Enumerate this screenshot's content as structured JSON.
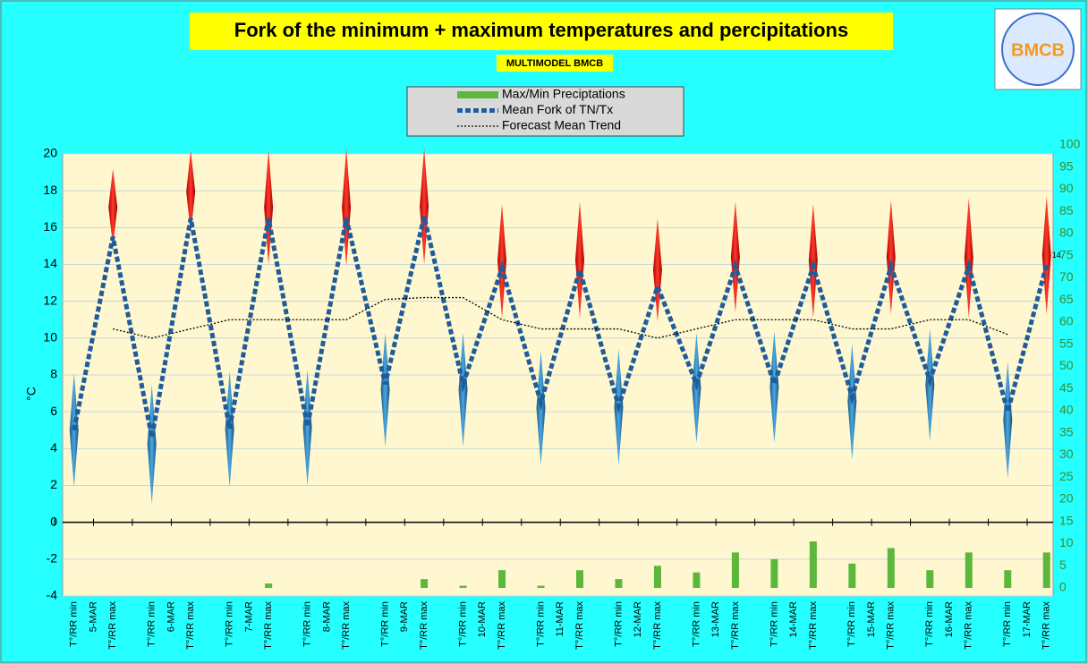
{
  "chart_data": {
    "type": "combo",
    "title": "Fork of the minimum + maximum temperatures and percipitations",
    "subtitle": "MULTIMODEL BMCB",
    "logo": "BMCB",
    "y_label": "°C",
    "categories": [
      "T°/RR min",
      "T°/RR max",
      "T°/RR min",
      "T°/RR max",
      "T°/RR min",
      "T°/RR max",
      "T°/RR min",
      "T°/RR max",
      "T°/RR min",
      "T°/RR max",
      "T°/RR min",
      "T°/RR max",
      "T°/RR min",
      "T°/RR max",
      "T°/RR min",
      "T°/RR max",
      "T°/RR min",
      "T°/RR max",
      "T°/RR min",
      "T°/RR max",
      "T°/RR min",
      "T°/RR max",
      "T°/RR min",
      "T°/RR max",
      "T°/RR min",
      "T°/RR max"
    ],
    "days": [
      "5-MAR",
      "6-MAR",
      "7-MAR",
      "8-MAR",
      "9-MAR",
      "10-MAR",
      "11-MAR",
      "12-MAR",
      "13-MAR",
      "14-MAR",
      "15-MAR",
      "16-MAR",
      "17-MAR"
    ],
    "series": [
      {
        "name": "Max/Min Preciptations",
        "style": "bar",
        "axis": "y2",
        "color": "#5cb83c",
        "values": [
          null,
          null,
          null,
          null,
          null,
          1,
          null,
          null,
          null,
          2,
          0.5,
          4,
          0.5,
          4,
          2,
          5,
          3.5,
          8,
          6.5,
          10.5,
          5.5,
          9,
          4,
          8,
          4,
          8
        ]
      },
      {
        "name": "Mean Fork of TN/Tx",
        "style": "dashed",
        "color": "#1f5c9c",
        "values": [
          5,
          15.5,
          4.6,
          16.5,
          5.1,
          16.5,
          5.2,
          16.5,
          7.5,
          16.6,
          7.5,
          13.8,
          6.5,
          13.7,
          6.3,
          12.8,
          7.5,
          13.9,
          7.5,
          13.9,
          6.8,
          13.9,
          7.7,
          13.9,
          6,
          14
        ],
        "value_labels": [
          null,
          null,
          null,
          null,
          null,
          null,
          null,
          null,
          null,
          null,
          null,
          null,
          null,
          null,
          null,
          null,
          null,
          null,
          null,
          null,
          null,
          null,
          null,
          null,
          null,
          "14"
        ]
      },
      {
        "name": "Forecast Mean Trend",
        "style": "dotted",
        "color": "#000000",
        "values": [
          null,
          10.5,
          10,
          10.5,
          11,
          11,
          11,
          11,
          12.1,
          12.2,
          12.2,
          11,
          10.5,
          10.5,
          10.5,
          10,
          10.5,
          11,
          11,
          11,
          10.5,
          10.5,
          11,
          11,
          10.2,
          null
        ]
      }
    ],
    "fork_low": [
      1.9,
      15.0,
      1.0,
      15.7,
      1.9,
      14.0,
      2.0,
      13.9,
      4.1,
      14.0,
      4.1,
      11.1,
      3.1,
      11.1,
      3.1,
      10.9,
      4.3,
      11.4,
      4.3,
      11.1,
      3.4,
      11.3,
      4.4,
      11.1,
      2.4,
      11.3
    ],
    "fork_high": [
      8.1,
      19.2,
      7.5,
      20.2,
      8.2,
      20.2,
      8.3,
      20.3,
      10.3,
      20.3,
      10.3,
      17.3,
      9.3,
      17.4,
      9.4,
      16.5,
      10.3,
      17.4,
      10.4,
      17.3,
      9.7,
      17.5,
      10.5,
      17.6,
      8.7,
      17.7
    ],
    "ylim": [
      -4,
      20
    ],
    "yticks": [
      -4,
      -2,
      0,
      2,
      4,
      6,
      8,
      10,
      12,
      14,
      16,
      18,
      20
    ],
    "y2lim": [
      0,
      100
    ],
    "y2ticks": [
      0,
      5,
      10,
      15,
      20,
      25,
      30,
      35,
      40,
      45,
      50,
      55,
      60,
      65,
      70,
      75,
      80,
      85,
      90,
      95,
      100
    ],
    "grid": true
  }
}
